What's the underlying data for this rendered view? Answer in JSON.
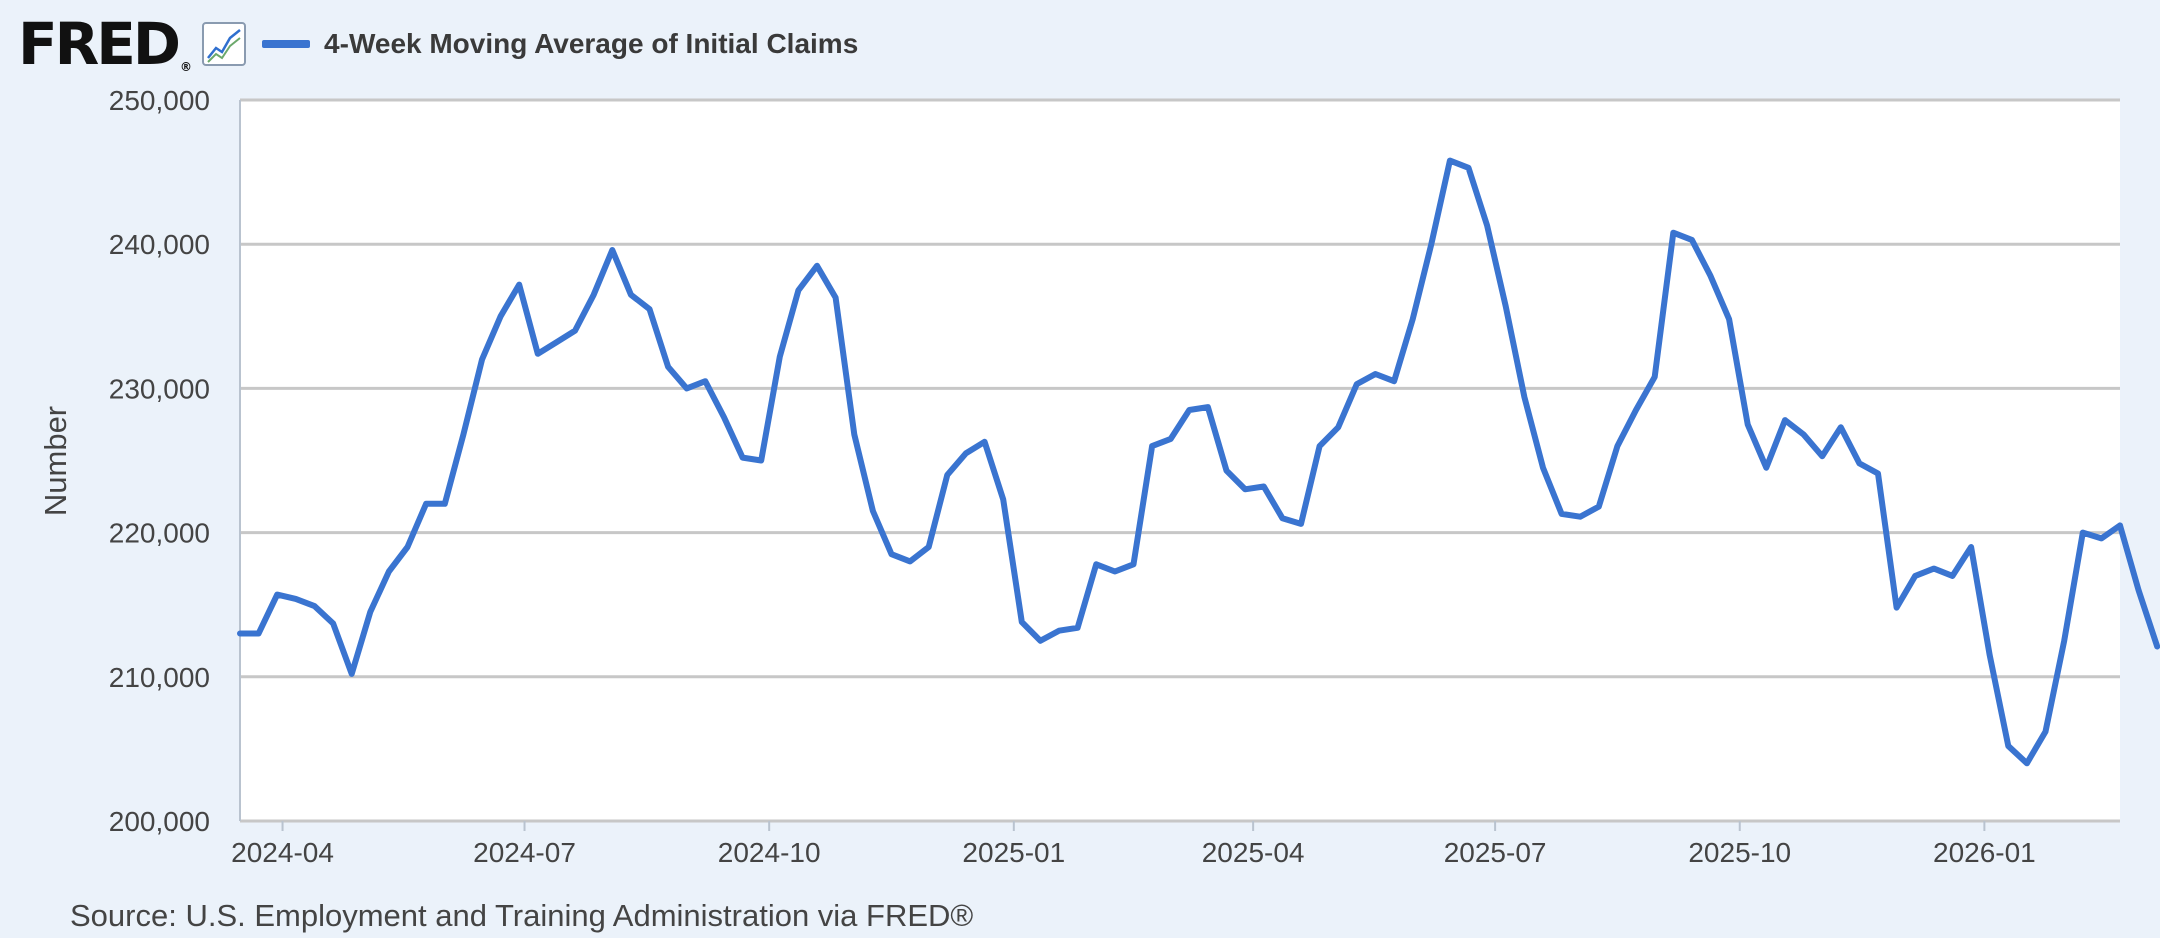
{
  "header": {
    "logo_text": "FRED",
    "logo_mark": "®",
    "legend_label": "4-Week Moving Average of Initial Claims",
    "legend_color": "#3a74d0"
  },
  "source": "Source: U.S. Employment and Training Administration via FRED®",
  "chart_data": {
    "type": "line",
    "title": "",
    "xlabel": "",
    "ylabel": "Number",
    "ylim": [
      200000,
      250000
    ],
    "xlim": [
      "2024-03-16",
      "2026-02-21"
    ],
    "grid": true,
    "legend": "top-left",
    "yticks": [
      200000,
      210000,
      220000,
      230000,
      240000,
      250000
    ],
    "ytick_labels": [
      "200,000",
      "210,000",
      "220,000",
      "230,000",
      "240,000",
      "250,000"
    ],
    "xticks": [
      "2024-04-01",
      "2024-07-01",
      "2024-10-01",
      "2025-01-01",
      "2025-04-01",
      "2025-07-01",
      "2025-10-01",
      "2026-01-01"
    ],
    "xtick_labels": [
      "2024-04",
      "2024-07",
      "2024-10",
      "2025-01",
      "2025-04",
      "2025-07",
      "2025-10",
      "2026-01"
    ],
    "series": [
      {
        "name": "4-Week Moving Average of Initial Claims",
        "color": "#3a74d0",
        "start_date": "2024-03-16",
        "interval_days": 7,
        "values": [
          213000,
          213000,
          215700,
          215400,
          214900,
          213700,
          210200,
          214500,
          217300,
          219000,
          222000,
          222000,
          226800,
          232000,
          235000,
          237200,
          232400,
          233200,
          234000,
          236500,
          239600,
          236500,
          235500,
          231500,
          230000,
          230500,
          228000,
          225200,
          225000,
          232200,
          236800,
          238500,
          236300,
          226800,
          221500,
          218500,
          218000,
          219000,
          224000,
          225500,
          226300,
          222300,
          213800,
          212500,
          213200,
          213400,
          217800,
          217300,
          217800,
          226000,
          226500,
          228500,
          228700,
          224300,
          223000,
          223200,
          221000,
          220600,
          226000,
          227300,
          230300,
          231000,
          230500,
          234800,
          240000,
          245800,
          245300,
          241300,
          235700,
          229400,
          224500,
          221300,
          221100,
          221800,
          226000,
          228500,
          230800,
          240800,
          240300,
          237800,
          234800,
          227500,
          224500,
          227800,
          226800,
          225300,
          227300,
          224800,
          224100,
          214800,
          217000,
          217500,
          217000,
          219000,
          211500,
          205200,
          204000,
          206200,
          212500,
          220000,
          219600,
          220500,
          216000,
          212100
        ]
      }
    ]
  }
}
